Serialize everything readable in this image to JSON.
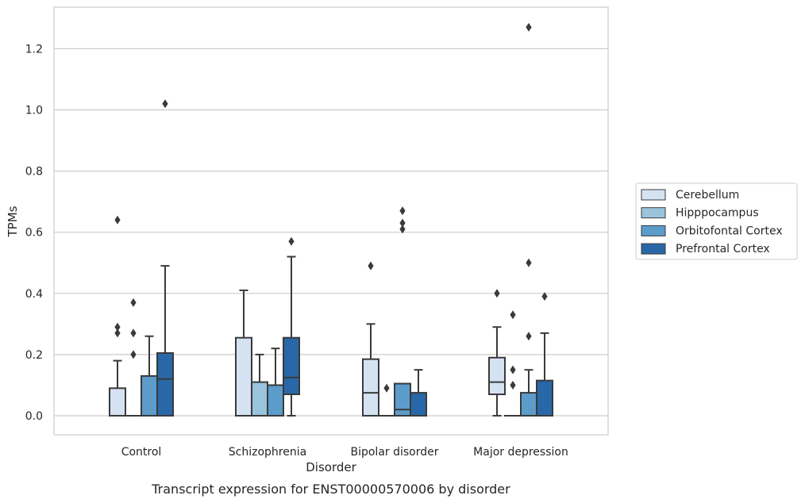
{
  "chart_data": {
    "type": "box",
    "title": "",
    "caption": "Transcript expression for ENST00000570006 by disorder",
    "xlabel": "Disorder",
    "ylabel": "TPMs",
    "ylim": [
      -0.06,
      1.34
    ],
    "yticks": [
      0.0,
      0.2,
      0.4,
      0.6,
      0.8,
      1.0,
      1.2
    ],
    "ytick_labels": [
      "0.0",
      "0.2",
      "0.4",
      "0.6",
      "0.8",
      "1.0",
      "1.2"
    ],
    "grid": "y",
    "legend_position": "right",
    "categories": [
      "Control",
      "Schizophrenia",
      "Bipolar disorder",
      "Major depression"
    ],
    "series": [
      {
        "name": "Cerebellum",
        "color": "#d4e2f2",
        "boxes": [
          {
            "min": 0.0,
            "q1": 0.0,
            "median": 0.0,
            "q3": 0.09,
            "max": 0.18,
            "outliers": [
              0.27,
              0.29,
              0.64
            ]
          },
          {
            "min": 0.0,
            "q1": 0.0,
            "median": 0.0,
            "q3": 0.255,
            "max": 0.41,
            "outliers": []
          },
          {
            "min": 0.0,
            "q1": 0.0,
            "median": 0.075,
            "q3": 0.185,
            "max": 0.3,
            "outliers": [
              0.49
            ]
          },
          {
            "min": 0.0,
            "q1": 0.07,
            "median": 0.11,
            "q3": 0.19,
            "max": 0.29,
            "outliers": [
              0.4
            ]
          }
        ]
      },
      {
        "name": "Hipppocampus",
        "color": "#9ac3dc",
        "boxes": [
          {
            "min": 0.0,
            "q1": 0.0,
            "median": 0.0,
            "q3": 0.0,
            "max": 0.0,
            "outliers": [
              0.2,
              0.27,
              0.37
            ]
          },
          {
            "min": 0.0,
            "q1": 0.0,
            "median": 0.0,
            "q3": 0.11,
            "max": 0.2,
            "outliers": []
          },
          {
            "min": 0.0,
            "q1": 0.0,
            "median": 0.0,
            "q3": 0.0,
            "max": 0.0,
            "outliers": [
              0.09
            ]
          },
          {
            "min": 0.0,
            "q1": 0.0,
            "median": 0.0,
            "q3": 0.0,
            "max": 0.0,
            "outliers": [
              0.1,
              0.15,
              0.33
            ]
          }
        ]
      },
      {
        "name": "Orbitofontal Cortex",
        "color": "#5c9ccb",
        "boxes": [
          {
            "min": 0.0,
            "q1": 0.0,
            "median": 0.0,
            "q3": 0.13,
            "max": 0.26,
            "outliers": []
          },
          {
            "min": 0.0,
            "q1": 0.0,
            "median": 0.0,
            "q3": 0.1,
            "max": 0.22,
            "outliers": []
          },
          {
            "min": 0.0,
            "q1": 0.0,
            "median": 0.02,
            "q3": 0.105,
            "max": 0.105,
            "outliers": [
              0.61,
              0.63,
              0.67
            ]
          },
          {
            "min": 0.0,
            "q1": 0.0,
            "median": 0.0,
            "q3": 0.075,
            "max": 0.15,
            "outliers": [
              0.26,
              0.5,
              1.27
            ]
          }
        ]
      },
      {
        "name": "Prefrontal Cortex",
        "color": "#2868a8",
        "boxes": [
          {
            "min": 0.0,
            "q1": 0.0,
            "median": 0.12,
            "q3": 0.205,
            "max": 0.49,
            "outliers": [
              1.02
            ]
          },
          {
            "min": 0.0,
            "q1": 0.07,
            "median": 0.125,
            "q3": 0.255,
            "max": 0.52,
            "outliers": [
              0.57
            ]
          },
          {
            "min": 0.0,
            "q1": 0.0,
            "median": 0.0,
            "q3": 0.075,
            "max": 0.15,
            "outliers": []
          },
          {
            "min": 0.0,
            "q1": 0.0,
            "median": 0.0,
            "q3": 0.115,
            "max": 0.27,
            "outliers": [
              0.39
            ]
          }
        ]
      }
    ]
  }
}
